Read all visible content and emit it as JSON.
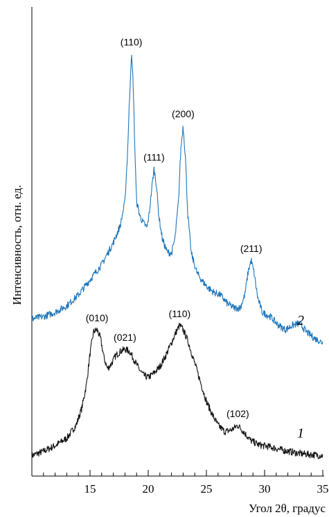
{
  "chart_data": {
    "type": "line",
    "xlabel": "Угол 2θ, градус",
    "ylabel": "Интенсивность, отн. ед.",
    "xlim": [
      10,
      35
    ],
    "ylim": [
      0,
      100
    ],
    "x_ticks": [
      15,
      20,
      25,
      30,
      35
    ],
    "x_minor_tick_step": 1,
    "grid": false,
    "legend": "none",
    "colors": {
      "1": "#111111",
      "2": "#1b75bc"
    },
    "series": [
      {
        "name": "1",
        "color": "#111111",
        "points": [
          [
            10.0,
            1.5
          ],
          [
            11.0,
            2.5
          ],
          [
            12.0,
            3.8
          ],
          [
            13.0,
            5.5
          ],
          [
            13.8,
            8.5
          ],
          [
            14.3,
            12.5
          ],
          [
            14.7,
            18.0
          ],
          [
            15.0,
            25.0
          ],
          [
            15.3,
            30.0
          ],
          [
            15.6,
            30.5
          ],
          [
            15.9,
            28.5
          ],
          [
            16.2,
            24.0
          ],
          [
            16.5,
            21.5
          ],
          [
            16.8,
            22.5
          ],
          [
            17.2,
            24.5
          ],
          [
            17.6,
            25.5
          ],
          [
            18.0,
            26.0
          ],
          [
            18.4,
            25.5
          ],
          [
            18.8,
            23.5
          ],
          [
            19.2,
            21.5
          ],
          [
            19.6,
            20.0
          ],
          [
            20.0,
            19.5
          ],
          [
            20.5,
            20.5
          ],
          [
            21.0,
            22.0
          ],
          [
            21.5,
            24.5
          ],
          [
            22.0,
            27.5
          ],
          [
            22.4,
            30.0
          ],
          [
            22.7,
            31.5
          ],
          [
            23.0,
            30.5
          ],
          [
            23.4,
            28.0
          ],
          [
            23.8,
            24.5
          ],
          [
            24.2,
            21.0
          ],
          [
            24.6,
            17.5
          ],
          [
            25.0,
            14.0
          ],
          [
            25.5,
            11.0
          ],
          [
            26.0,
            8.5
          ],
          [
            26.6,
            7.0
          ],
          [
            27.2,
            7.5
          ],
          [
            27.7,
            8.5
          ],
          [
            28.2,
            7.0
          ],
          [
            28.8,
            5.0
          ],
          [
            29.5,
            4.0
          ],
          [
            30.5,
            3.5
          ],
          [
            31.5,
            2.8
          ],
          [
            33.0,
            2.0
          ],
          [
            35.0,
            1.5
          ]
        ],
        "peaks": [
          {
            "label": "(010)",
            "x": 15.6
          },
          {
            "label": "(021)",
            "x": 18.0
          },
          {
            "label": "(110)",
            "x": 22.7
          },
          {
            "label": "(102)",
            "x": 27.7
          }
        ]
      },
      {
        "name": "2",
        "color": "#1b75bc",
        "points": [
          [
            10.0,
            33.0
          ],
          [
            11.0,
            33.5
          ],
          [
            12.0,
            34.5
          ],
          [
            13.0,
            36.0
          ],
          [
            14.0,
            38.5
          ],
          [
            15.0,
            42.0
          ],
          [
            16.0,
            45.5
          ],
          [
            17.0,
            50.5
          ],
          [
            17.6,
            54.5
          ],
          [
            18.0,
            60.0
          ],
          [
            18.2,
            70.0
          ],
          [
            18.4,
            84.0
          ],
          [
            18.55,
            94.0
          ],
          [
            18.7,
            88.0
          ],
          [
            18.85,
            72.0
          ],
          [
            19.0,
            60.0
          ],
          [
            19.3,
            56.5
          ],
          [
            19.6,
            55.0
          ],
          [
            19.9,
            54.0
          ],
          [
            20.1,
            57.5
          ],
          [
            20.3,
            63.0
          ],
          [
            20.5,
            67.5
          ],
          [
            20.7,
            64.0
          ],
          [
            20.9,
            57.0
          ],
          [
            21.2,
            51.5
          ],
          [
            21.6,
            48.5
          ],
          [
            22.0,
            48.0
          ],
          [
            22.3,
            51.5
          ],
          [
            22.6,
            60.0
          ],
          [
            22.8,
            72.0
          ],
          [
            23.0,
            77.5
          ],
          [
            23.2,
            70.0
          ],
          [
            23.4,
            57.0
          ],
          [
            23.7,
            48.0
          ],
          [
            24.2,
            43.5
          ],
          [
            24.7,
            41.5
          ],
          [
            25.2,
            40.0
          ],
          [
            25.7,
            39.0
          ],
          [
            26.2,
            38.5
          ],
          [
            26.8,
            36.5
          ],
          [
            27.4,
            35.5
          ],
          [
            27.9,
            35.5
          ],
          [
            28.3,
            38.5
          ],
          [
            28.6,
            44.0
          ],
          [
            28.85,
            46.5
          ],
          [
            29.1,
            43.5
          ],
          [
            29.4,
            38.0
          ],
          [
            29.8,
            34.5
          ],
          [
            30.5,
            33.5
          ],
          [
            31.2,
            31.5
          ],
          [
            31.8,
            30.5
          ],
          [
            32.4,
            31.5
          ],
          [
            33.0,
            32.0
          ],
          [
            33.6,
            30.0
          ],
          [
            34.3,
            28.5
          ],
          [
            35.0,
            27.5
          ]
        ],
        "peaks": [
          {
            "label": "(110)",
            "x": 18.55
          },
          {
            "label": "(111)",
            "x": 20.5
          },
          {
            "label": "(200)",
            "x": 23.0
          },
          {
            "label": "(211)",
            "x": 28.85
          }
        ]
      }
    ]
  }
}
